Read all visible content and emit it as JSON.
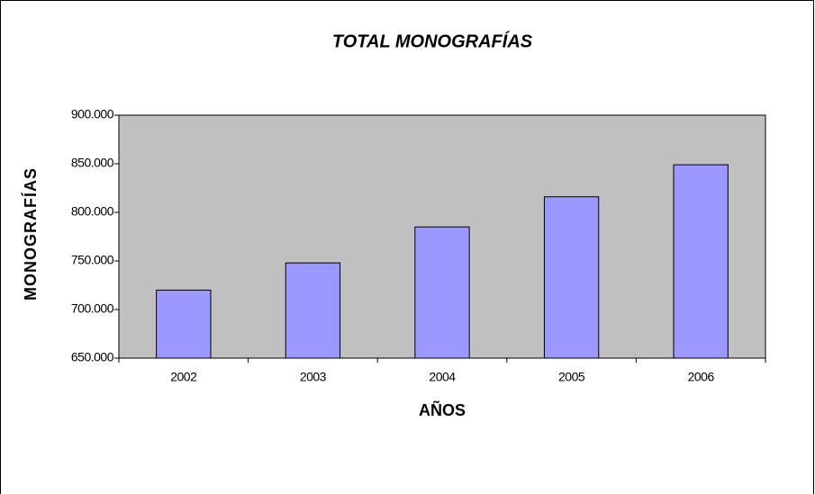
{
  "chart_data": {
    "type": "bar",
    "title": "TOTAL MONOGRAFÍAS",
    "x_label": "AÑOS",
    "y_label": "MONOGRAFÍAS",
    "categories": [
      "2002",
      "2003",
      "2004",
      "2005",
      "2006"
    ],
    "values": [
      720000,
      748000,
      785000,
      816000,
      849000
    ],
    "color": "#9999ff",
    "plot_background": "#c0c0c0",
    "ylim": [
      650000,
      900000
    ],
    "yticks": [
      {
        "value": 650000,
        "label": "650.000"
      },
      {
        "value": 700000,
        "label": "700.000"
      },
      {
        "value": 750000,
        "label": "750.000"
      },
      {
        "value": 800000,
        "label": "800.000"
      },
      {
        "value": 850000,
        "label": "850.000"
      },
      {
        "value": 900000,
        "label": "900.000"
      }
    ],
    "grid": false
  }
}
